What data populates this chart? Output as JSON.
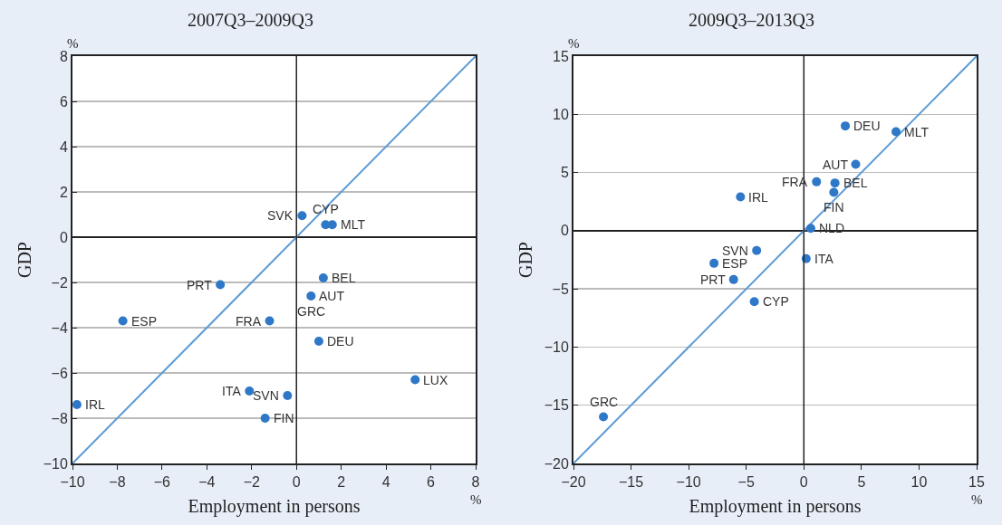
{
  "chart_data": [
    {
      "type": "scatter",
      "title": "2007Q3–2009Q3",
      "xlabel": "Employment in persons",
      "ylabel": "GDP",
      "xlim": [
        -10,
        8
      ],
      "ylim": [
        -10,
        8
      ],
      "xticks": [
        -10,
        -8,
        -6,
        -4,
        -2,
        0,
        2,
        4,
        6,
        8
      ],
      "ref_lines": [
        {
          "axis": "x",
          "value": 0
        }
      ],
      "yticks": [
        -10,
        -8,
        -6,
        -4,
        -2,
        0,
        2,
        4,
        6,
        8
      ],
      "grid": "y",
      "marker": "circle",
      "legend": false,
      "series": [
        {
          "type": "line",
          "marker": "none",
          "color": "#5b9bd5",
          "x": [
            -10,
            8
          ],
          "values": [
            -10,
            8
          ]
        },
        {
          "color": "#2e78c7",
          "x": [
            0.25,
            1.6,
            1.3,
            -3.4,
            1.2,
            0.65,
            null,
            -7.75,
            -1.2,
            1.0,
            5.3,
            -2.1,
            -0.4,
            -1.4,
            -9.8
          ],
          "values": [
            0.95,
            0.55,
            0.55,
            -2.1,
            -1.8,
            -2.6,
            null,
            -3.7,
            -3.7,
            -4.6,
            -6.3,
            -6.8,
            -7.0,
            -8.0,
            -7.4
          ]
        }
      ],
      "annotations": [
        "%",
        "%",
        {
          "text": "SVK",
          "x": 0.25,
          "y": 0.95
        },
        {
          "text": "MLT",
          "x": 1.6,
          "y": 0.55
        },
        {
          "text": "CYP",
          "x": 1.3,
          "y": 0.55
        },
        {
          "text": "PRT",
          "x": -3.4,
          "y": -2.1
        },
        {
          "text": "BEL",
          "x": 1.2,
          "y": -1.8
        },
        {
          "text": "AUT",
          "x": 0.65,
          "y": -2.6
        },
        {
          "text": "GRC",
          "x": 0.65,
          "y": -2.6
        },
        {
          "text": "ESP",
          "x": -7.75,
          "y": -3.7
        },
        {
          "text": "FRA",
          "x": -1.2,
          "y": -3.7
        },
        {
          "text": "DEU",
          "x": 1.0,
          "y": -4.6
        },
        {
          "text": "LUX",
          "x": 5.3,
          "y": -6.3
        },
        {
          "text": "SVN",
          "x": -0.4,
          "y": -7.0
        },
        {
          "text": "ITA",
          "x": -2.1,
          "y": -6.8
        },
        {
          "text": "FIN",
          "x": -1.4,
          "y": -8.0
        },
        {
          "text": "IRL",
          "x": -9.8,
          "y": -7.4
        }
      ]
    },
    {
      "type": "scatter",
      "title": "2009Q3–2013Q3",
      "xlabel": "Employment in persons",
      "ylabel": "GDP",
      "xlim": [
        -20,
        15
      ],
      "ylim": [
        -20,
        15
      ],
      "xticks": [
        -20,
        -15,
        -10,
        -5,
        0,
        5,
        10,
        15
      ],
      "ref_lines": [
        {
          "axis": "x",
          "value": 0
        }
      ],
      "yticks": [
        -20,
        -15,
        -10,
        -5,
        0,
        5,
        10,
        15
      ],
      "grid": "y",
      "marker": "circle",
      "legend": false,
      "series": [
        {
          "type": "line",
          "marker": "none",
          "color": "#5b9bd5",
          "x": [
            -20,
            15
          ],
          "values": [
            -20,
            15
          ]
        },
        {
          "color": "#2e78c7",
          "x": [
            3.6,
            8.0,
            4.5,
            -5.5,
            1.1,
            2.7,
            2.6,
            0.6,
            -4.1,
            -7.8,
            0.2,
            -6.1,
            -4.3,
            -17.4
          ],
          "values": [
            9.0,
            8.5,
            5.7,
            2.9,
            4.2,
            4.1,
            3.3,
            0.2,
            -1.7,
            -2.8,
            -2.4,
            -4.2,
            -6.1,
            -16.0
          ]
        }
      ],
      "annotations": [
        "%",
        "%",
        {
          "text": "DEU",
          "x": 3.6,
          "y": 9.0
        },
        {
          "text": "MLT",
          "x": 8.0,
          "y": 8.5
        },
        {
          "text": "AUT",
          "x": 4.5,
          "y": 5.7
        },
        {
          "text": "IRL",
          "x": -5.5,
          "y": 2.9
        },
        {
          "text": "FRA",
          "x": 1.1,
          "y": 4.2
        },
        {
          "text": "BEL",
          "x": 2.7,
          "y": 4.1
        },
        {
          "text": "FIN",
          "x": 2.6,
          "y": 3.3
        },
        {
          "text": "NLD",
          "x": 0.6,
          "y": 0.2
        },
        {
          "text": "SVN",
          "x": -4.1,
          "y": -1.7
        },
        {
          "text": "ESP",
          "x": -7.8,
          "y": -2.8
        },
        {
          "text": "ITA",
          "x": 0.2,
          "y": -2.4
        },
        {
          "text": "PRT",
          "x": -6.1,
          "y": -4.2
        },
        {
          "text": "CYP",
          "x": -4.3,
          "y": -6.1
        },
        {
          "text": "GRC",
          "x": -17.4,
          "y": -16.0
        }
      ]
    }
  ]
}
